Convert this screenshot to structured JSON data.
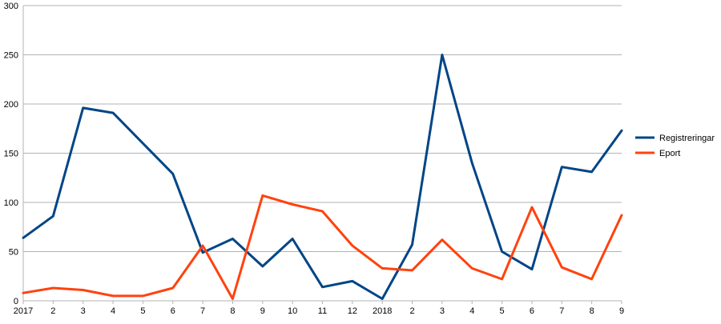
{
  "chart_data": {
    "type": "line",
    "title": "",
    "xlabel": "",
    "ylabel": "",
    "categories": [
      "2017",
      "2",
      "3",
      "4",
      "5",
      "6",
      "7",
      "8",
      "9",
      "10",
      "11",
      "12",
      "2018",
      "2",
      "3",
      "4",
      "5",
      "6",
      "7",
      "8",
      "9"
    ],
    "ylim": [
      0,
      300
    ],
    "yticks": [
      0,
      50,
      100,
      150,
      200,
      250,
      300
    ],
    "grid": true,
    "legend_position": "right",
    "series": [
      {
        "name": "Registreringar",
        "color": "#004586",
        "values": [
          64,
          86,
          196,
          191,
          160,
          129,
          49,
          63,
          35,
          63,
          14,
          20,
          2,
          57,
          250,
          140,
          50,
          32,
          136,
          131,
          173
        ]
      },
      {
        "name": "Eport",
        "color": "#ff420e",
        "values": [
          8,
          13,
          11,
          5,
          5,
          13,
          56,
          2,
          107,
          98,
          91,
          56,
          33,
          31,
          62,
          33,
          22,
          95,
          34,
          22,
          87
        ]
      }
    ]
  }
}
